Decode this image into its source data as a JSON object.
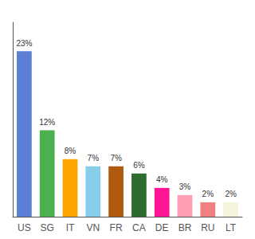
{
  "chart_data": {
    "type": "bar",
    "categories": [
      "US",
      "SG",
      "IT",
      "VN",
      "FR",
      "CA",
      "DE",
      "BR",
      "RU",
      "LT"
    ],
    "values": [
      23,
      12,
      8,
      7,
      7,
      6,
      4,
      3,
      2,
      2
    ],
    "value_labels": [
      "23%",
      "12%",
      "8%",
      "7%",
      "7%",
      "6%",
      "4%",
      "3%",
      "2%",
      "2%"
    ],
    "colors": [
      "#5b7fd4",
      "#4caf50",
      "#ffa500",
      "#87ceeb",
      "#b05a10",
      "#2e6b2e",
      "#ff1493",
      "#ff9eb5",
      "#f08080",
      "#f5f5dc"
    ],
    "ylim": [
      0,
      27
    ],
    "data_labels": true,
    "tick_labels": "x",
    "grid": false
  }
}
